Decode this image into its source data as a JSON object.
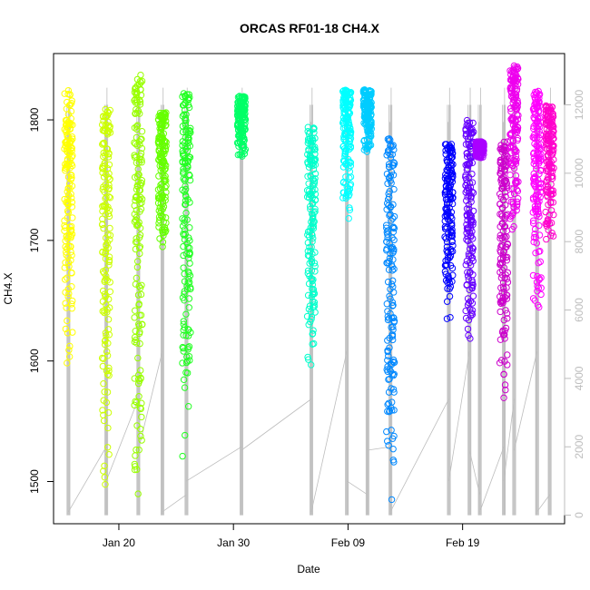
{
  "chart_data": {
    "type": "scatter",
    "title": "ORCAS RF01-18 CH4.X",
    "xlabel": "Date",
    "ylabel": "CH4.X",
    "x_ticks": [
      "Jan 20",
      "Jan 30",
      "Feb 09",
      "Feb 19"
    ],
    "x_tick_days": [
      20,
      30,
      40,
      50
    ],
    "xlim_days": [
      14.3,
      58.9
    ],
    "ylim": [
      1465,
      1855
    ],
    "y_ticks": [
      1500,
      1600,
      1700,
      1800
    ],
    "y2_label": "",
    "y2_ticks": [
      0,
      2000,
      4000,
      6000,
      8000,
      10000,
      12000
    ],
    "y2lim": [
      -250,
      13500
    ],
    "grid": false,
    "legend": "none",
    "secondary_series": {
      "name": "",
      "color": "#bdbdbd",
      "style": "line",
      "description": "altitude trace, right axis"
    },
    "flights": [
      {
        "day": 15.6,
        "ymin": 1580,
        "ymax": 1825,
        "color": "#ffff00"
      },
      {
        "day": 18.9,
        "ymin": 1478,
        "ymax": 1810,
        "color": "#ccff00"
      },
      {
        "day": 21.7,
        "ymin": 1478,
        "ymax": 1838,
        "color": "#99ff00"
      },
      {
        "day": 23.8,
        "ymin": 1690,
        "ymax": 1808,
        "color": "#66ff00"
      },
      {
        "day": 25.9,
        "ymin": 1505,
        "ymax": 1822,
        "color": "#22ff22"
      },
      {
        "day": 30.7,
        "ymin": 1765,
        "ymax": 1820,
        "color": "#00ff66"
      },
      {
        "day": 36.8,
        "ymin": 1595,
        "ymax": 1795,
        "color": "#00ffcc"
      },
      {
        "day": 39.9,
        "ymin": 1710,
        "ymax": 1825,
        "color": "#00ffff"
      },
      {
        "day": 41.7,
        "ymin": 1770,
        "ymax": 1825,
        "color": "#00ccff"
      },
      {
        "day": 43.7,
        "ymin": 1475,
        "ymax": 1788,
        "color": "#0088ff"
      },
      {
        "day": 48.8,
        "ymin": 1630,
        "ymax": 1780,
        "color": "#0000ff"
      },
      {
        "day": 50.6,
        "ymin": 1600,
        "ymax": 1800,
        "color": "#6600ff"
      },
      {
        "day": 51.5,
        "ymin": 1768,
        "ymax": 1782,
        "color": "#aa00ff"
      },
      {
        "day": 53.6,
        "ymin": 1565,
        "ymax": 1782,
        "color": "#cc00cc"
      },
      {
        "day": 54.5,
        "ymin": 1700,
        "ymax": 1845,
        "color": "#ee00ee"
      },
      {
        "day": 56.5,
        "ymin": 1630,
        "ymax": 1825,
        "color": "#ff00ff"
      },
      {
        "day": 57.6,
        "ymin": 1695,
        "ymax": 1812,
        "color": "#ff00cc"
      }
    ]
  }
}
